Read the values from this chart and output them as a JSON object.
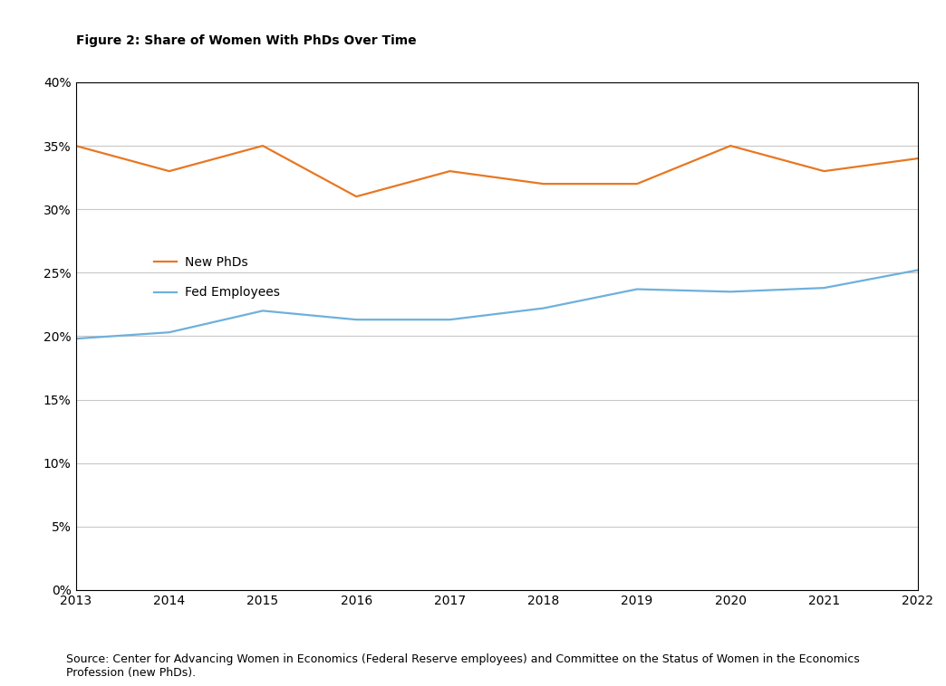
{
  "title": "Figure 2: Share of Women With PhDs Over Time",
  "years": [
    2013,
    2014,
    2015,
    2016,
    2017,
    2018,
    2019,
    2020,
    2021,
    2022
  ],
  "new_phds": [
    0.35,
    0.33,
    0.35,
    0.31,
    0.33,
    0.32,
    0.32,
    0.35,
    0.33,
    0.34
  ],
  "fed_employees": [
    0.198,
    0.203,
    0.22,
    0.213,
    0.213,
    0.222,
    0.237,
    0.235,
    0.238,
    0.252
  ],
  "new_phds_color": "#E87722",
  "fed_employees_color": "#6EB0DC",
  "new_phds_label": "New PhDs",
  "fed_employees_label": "Fed Employees",
  "ylim": [
    0,
    0.4
  ],
  "yticks": [
    0.0,
    0.05,
    0.1,
    0.15,
    0.2,
    0.25,
    0.3,
    0.35,
    0.4
  ],
  "source_text": "Source: Center for Advancing Women in Economics (Federal Reserve employees) and Committee on the Status of Women in the Economics\nProfession (new PhDs).",
  "background_color": "#ffffff",
  "plot_background_color": "#ffffff",
  "grid_color": "#c8c8c8",
  "title_fontsize": 10,
  "label_fontsize": 10,
  "tick_fontsize": 10,
  "source_fontsize": 9,
  "line_width": 1.6
}
